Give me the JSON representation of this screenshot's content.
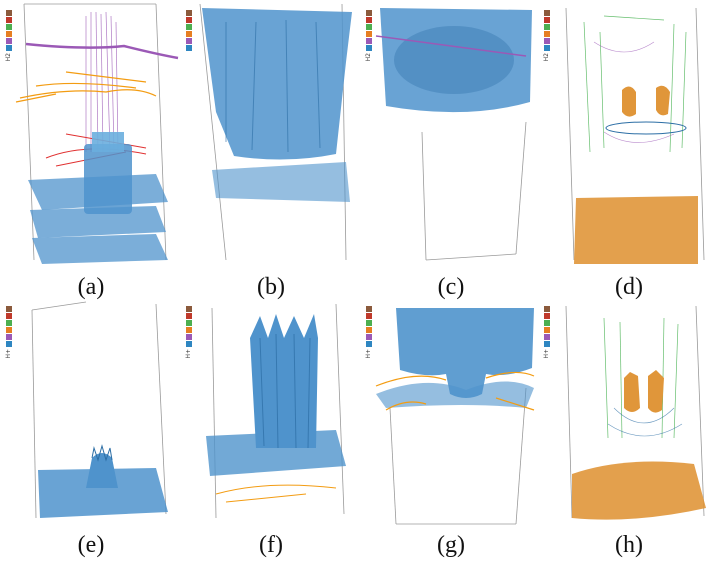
{
  "figure": {
    "panels": [
      {
        "id": "a",
        "caption": "(a)",
        "legend_label": "H2",
        "show_legend": true
      },
      {
        "id": "b",
        "caption": "(b)",
        "legend_label": "",
        "show_legend": true
      },
      {
        "id": "c",
        "caption": "(c)",
        "legend_label": "H2",
        "show_legend": true
      },
      {
        "id": "d",
        "caption": "(d)",
        "legend_label": "H2",
        "show_legend": true
      },
      {
        "id": "e",
        "caption": "(e)",
        "legend_label": "H+",
        "show_legend": true
      },
      {
        "id": "f",
        "caption": "(f)",
        "legend_label": "H+",
        "show_legend": true
      },
      {
        "id": "g",
        "caption": "(g)",
        "legend_label": "H+",
        "show_legend": true
      },
      {
        "id": "h",
        "caption": "(h)",
        "legend_label": "H+",
        "show_legend": true
      }
    ],
    "legend_colors": [
      "#8b5a3c",
      "#c0392b",
      "#4caf50",
      "#e67e22",
      "#9b59b6",
      "#2e86c1"
    ],
    "colors": {
      "iso_blue": "#4f93cc",
      "iso_orange": "#e0963a",
      "line_purple": "#9b59b6",
      "line_orange": "#f39c12",
      "line_red": "#e03030",
      "line_green": "#3fae49",
      "box_grey": "#9a9a9a"
    }
  }
}
